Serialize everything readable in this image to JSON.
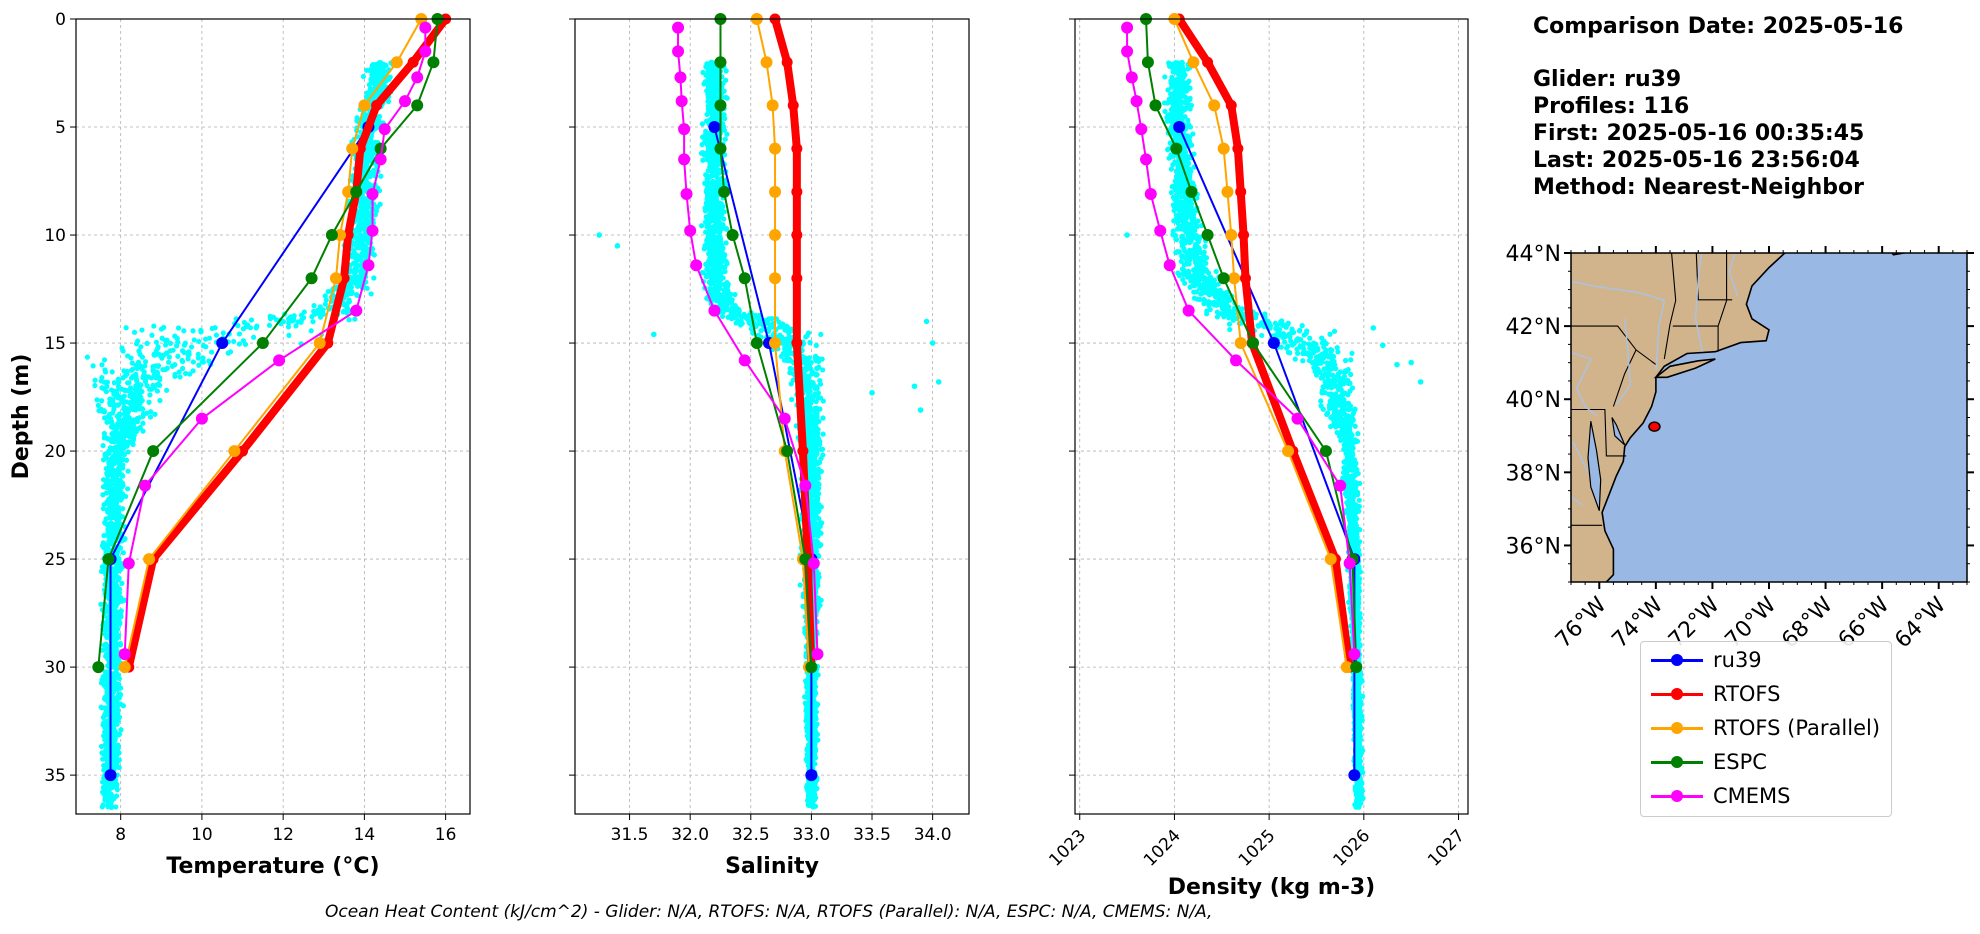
{
  "chart_data": [
    {
      "type": "line",
      "panel": "temperature",
      "xlabel": "Temperature (°C)",
      "ylabel": "Depth (m)",
      "xlim": [
        6.9,
        16.6
      ],
      "ylim": [
        36.8,
        0
      ],
      "xticks": [
        8,
        10,
        12,
        14,
        16
      ],
      "yticks": [
        0,
        5,
        10,
        15,
        20,
        25,
        30,
        35
      ],
      "grid": true,
      "series": [
        {
          "name": "ru39",
          "color": "#0000ff",
          "width": 2,
          "depth": [
            5,
            15,
            25,
            35
          ],
          "values": [
            14.1,
            10.5,
            7.75,
            7.75
          ]
        },
        {
          "name": "RTOFS",
          "color": "#ff0000",
          "width": 8,
          "depth": [
            0,
            2,
            4,
            6,
            8,
            10,
            12,
            15,
            20,
            25,
            30
          ],
          "values": [
            16.0,
            15.2,
            14.3,
            13.9,
            13.8,
            13.6,
            13.5,
            13.1,
            11.0,
            8.8,
            8.2
          ]
        },
        {
          "name": "RTOFS (Parallel)",
          "color": "#ffa500",
          "width": 2,
          "depth": [
            0,
            2,
            4,
            6,
            8,
            10,
            12,
            15,
            20,
            25,
            30
          ],
          "values": [
            15.4,
            14.8,
            14.0,
            13.7,
            13.6,
            13.4,
            13.3,
            12.9,
            10.8,
            8.7,
            8.1
          ]
        },
        {
          "name": "ESPC",
          "color": "#008000",
          "width": 2,
          "depth": [
            0,
            2,
            4,
            6,
            8,
            10,
            12,
            15,
            20,
            25,
            30
          ],
          "values": [
            15.8,
            15.7,
            15.3,
            14.4,
            13.8,
            13.2,
            12.7,
            11.5,
            8.8,
            7.7,
            7.45
          ]
        },
        {
          "name": "CMEMS",
          "color": "#ff00ff",
          "width": 2,
          "depth": [
            0.4,
            1.5,
            2.7,
            3.8,
            5.1,
            6.5,
            8.1,
            9.8,
            11.4,
            13.5,
            15.8,
            18.5,
            21.6,
            25.2,
            29.4
          ],
          "values": [
            15.5,
            15.5,
            15.3,
            15.0,
            14.5,
            14.4,
            14.2,
            14.2,
            14.1,
            13.8,
            11.9,
            10.0,
            8.6,
            8.2,
            8.1
          ]
        }
      ]
    },
    {
      "type": "line",
      "panel": "salinity",
      "xlabel": "Salinity",
      "ylabel": "",
      "xlim": [
        31.05,
        34.3
      ],
      "ylim": [
        36.8,
        0
      ],
      "xticks": [
        31.5,
        32.0,
        32.5,
        33.0,
        33.5,
        34.0
      ],
      "yticks": [
        0,
        5,
        10,
        15,
        20,
        25,
        30,
        35
      ],
      "grid": true,
      "series": [
        {
          "name": "ru39",
          "color": "#0000ff",
          "width": 2,
          "depth": [
            5,
            15,
            25,
            35
          ],
          "values": [
            32.2,
            32.65,
            33.0,
            33.0
          ]
        },
        {
          "name": "RTOFS",
          "color": "#ff0000",
          "width": 8,
          "depth": [
            0,
            2,
            4,
            6,
            8,
            10,
            12,
            15,
            20,
            25,
            30
          ],
          "values": [
            32.7,
            32.8,
            32.85,
            32.88,
            32.88,
            32.88,
            32.88,
            32.88,
            32.93,
            32.97,
            33.0
          ]
        },
        {
          "name": "RTOFS (Parallel)",
          "color": "#ffa500",
          "width": 2,
          "depth": [
            0,
            2,
            4,
            6,
            8,
            10,
            12,
            15,
            20,
            25,
            30
          ],
          "values": [
            32.55,
            32.63,
            32.68,
            32.7,
            32.7,
            32.7,
            32.7,
            32.7,
            32.78,
            32.93,
            32.98
          ]
        },
        {
          "name": "ESPC",
          "color": "#008000",
          "width": 2,
          "depth": [
            0,
            2,
            4,
            6,
            8,
            10,
            12,
            15,
            20,
            25,
            30
          ],
          "values": [
            32.25,
            32.25,
            32.25,
            32.25,
            32.28,
            32.35,
            32.45,
            32.55,
            32.8,
            32.95,
            33.0
          ]
        },
        {
          "name": "CMEMS",
          "color": "#ff00ff",
          "width": 2,
          "depth": [
            0.4,
            1.5,
            2.7,
            3.8,
            5.1,
            6.5,
            8.1,
            9.8,
            11.4,
            13.5,
            15.8,
            18.5,
            21.6,
            25.2,
            29.4
          ],
          "values": [
            31.9,
            31.9,
            31.92,
            31.93,
            31.95,
            31.95,
            31.97,
            32.0,
            32.05,
            32.2,
            32.45,
            32.78,
            32.95,
            33.02,
            33.05
          ]
        }
      ]
    },
    {
      "type": "line",
      "panel": "density",
      "xlabel": "Density (kg m-3)",
      "ylabel": "",
      "xlim": [
        1022.95,
        1027.1
      ],
      "ylim": [
        36.8,
        0
      ],
      "xticks": [
        1023,
        1024,
        1025,
        1026,
        1027
      ],
      "yticks": [
        0,
        5,
        10,
        15,
        20,
        25,
        30,
        35
      ],
      "grid": true,
      "series": [
        {
          "name": "ru39",
          "color": "#0000ff",
          "width": 2,
          "depth": [
            5,
            15,
            25,
            35
          ],
          "values": [
            1024.05,
            1025.05,
            1025.9,
            1025.9
          ]
        },
        {
          "name": "RTOFS",
          "color": "#ff0000",
          "width": 8,
          "depth": [
            0,
            2,
            4,
            6,
            8,
            10,
            12,
            15,
            20,
            25,
            30
          ],
          "values": [
            1024.05,
            1024.35,
            1024.6,
            1024.67,
            1024.7,
            1024.73,
            1024.75,
            1024.82,
            1025.25,
            1025.7,
            1025.85
          ]
        },
        {
          "name": "RTOFS (Parallel)",
          "color": "#ffa500",
          "width": 2,
          "depth": [
            0,
            2,
            4,
            6,
            8,
            10,
            12,
            15,
            20,
            25,
            30
          ],
          "values": [
            1024.0,
            1024.2,
            1024.42,
            1024.52,
            1024.56,
            1024.6,
            1024.63,
            1024.7,
            1025.2,
            1025.65,
            1025.82
          ]
        },
        {
          "name": "ESPC",
          "color": "#008000",
          "width": 2,
          "depth": [
            0,
            2,
            4,
            6,
            8,
            10,
            12,
            15,
            20,
            25,
            30
          ],
          "values": [
            1023.7,
            1023.72,
            1023.8,
            1024.02,
            1024.18,
            1024.35,
            1024.52,
            1024.83,
            1025.6,
            1025.88,
            1025.92
          ]
        },
        {
          "name": "CMEMS",
          "color": "#ff00ff",
          "width": 2,
          "depth": [
            0.4,
            1.5,
            2.7,
            3.8,
            5.1,
            6.5,
            8.1,
            9.8,
            11.4,
            13.5,
            15.8,
            18.5,
            21.6,
            25.2,
            29.4
          ],
          "values": [
            1023.5,
            1023.5,
            1023.55,
            1023.6,
            1023.65,
            1023.7,
            1023.75,
            1023.85,
            1023.95,
            1024.15,
            1024.65,
            1025.3,
            1025.75,
            1025.85,
            1025.9
          ]
        }
      ]
    },
    {
      "type": "map",
      "panel": "locator-map",
      "lat_ticks": [
        "44°N",
        "42°N",
        "40°N",
        "38°N",
        "36°N"
      ],
      "lon_ticks": [
        "76°W",
        "74°W",
        "72°W",
        "70°W",
        "68°W",
        "66°W",
        "64°W"
      ],
      "extent": {
        "lon": [
          -77,
          -63
        ],
        "lat": [
          35,
          44
        ]
      },
      "glider_position": {
        "lon": -74.05,
        "lat": 39.25
      },
      "land_color": "#d2b48c",
      "water_color": "#99b8e3"
    }
  ],
  "info": {
    "comparison": "Comparison Date: 2025-05-16",
    "glider": "Glider: ru39",
    "profiles": "Profiles: 116",
    "first": "First: 2025-05-16 00:35:45",
    "last": "Last: 2025-05-16 23:56:04",
    "method": "Method: Nearest-Neighbor"
  },
  "legend": [
    {
      "name": "ru39",
      "color": "#0000ff"
    },
    {
      "name": "RTOFS",
      "color": "#ff0000"
    },
    {
      "name": "RTOFS (Parallel)",
      "color": "#ffa500"
    },
    {
      "name": "ESPC",
      "color": "#008000"
    },
    {
      "name": "CMEMS",
      "color": "#ff00ff"
    }
  ],
  "footer": "Ocean Heat Content (kJ/cm^2) - Glider: N/A,  RTOFS: N/A,  RTOFS (Parallel): N/A,  ESPC: N/A,  CMEMS: N/A,",
  "colors": {
    "scatter": "#00ffff",
    "grid": "#b0b0b0"
  }
}
